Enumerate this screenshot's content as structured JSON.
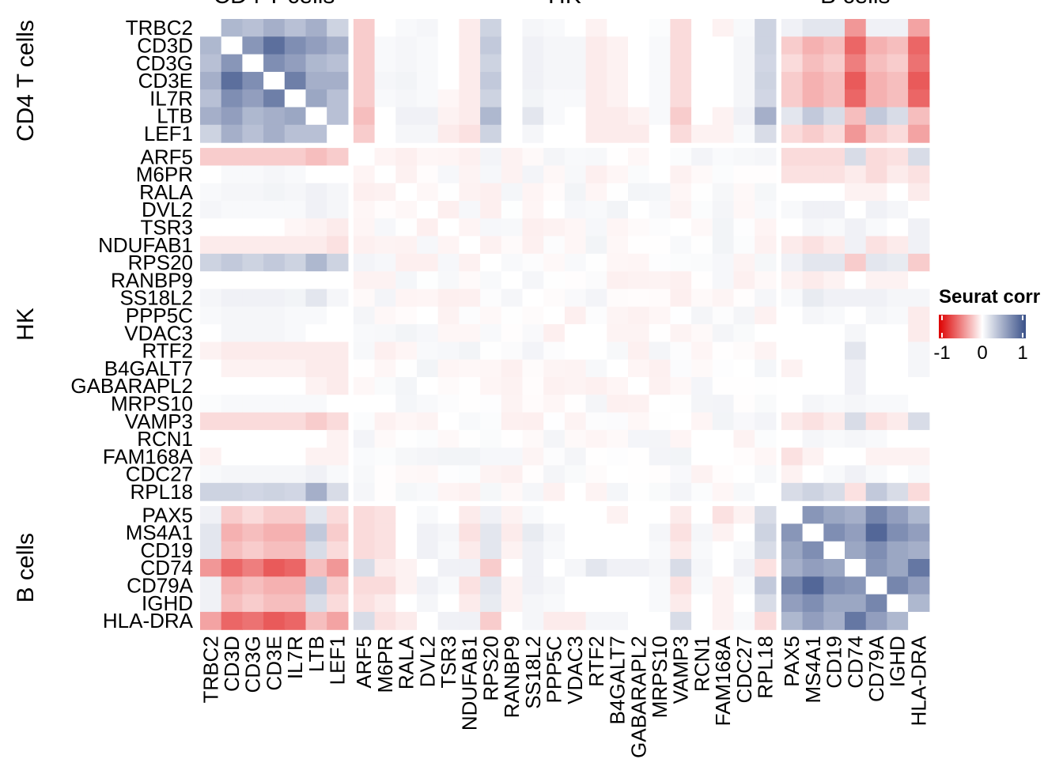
{
  "chart_data": {
    "type": "heatmap",
    "title": "",
    "groups": [
      {
        "name": "CD4 T cells",
        "genes": [
          "TRBC2",
          "CD3D",
          "CD3G",
          "CD3E",
          "IL7R",
          "LTB",
          "LEF1"
        ]
      },
      {
        "name": "HK",
        "genes": [
          "ARF5",
          "M6PR",
          "RALA",
          "DVL2",
          "TSR3",
          "NDUFAB1",
          "RPS20",
          "RANBP9",
          "SS18L2",
          "PPP5C",
          "VDAC3",
          "RTF2",
          "B4GALT7",
          "GABARAPL2",
          "MRPS10",
          "VAMP3",
          "RCN1",
          "FAM168A",
          "CDC27",
          "RPL18"
        ]
      },
      {
        "name": "B cells",
        "genes": [
          "PAX5",
          "MS4A1",
          "CD19",
          "CD74",
          "CD79A",
          "IGHD",
          "HLA-DRA"
        ]
      }
    ],
    "within_blocks": {
      "CD4 T cells": [
        [
          null,
          0.35,
          0.3,
          0.4,
          0.3,
          0.4,
          0.2
        ],
        [
          0.35,
          null,
          0.55,
          0.8,
          0.6,
          0.5,
          0.4
        ],
        [
          0.3,
          0.55,
          null,
          0.6,
          0.5,
          0.35,
          0.3
        ],
        [
          0.4,
          0.8,
          0.6,
          null,
          0.7,
          0.4,
          0.4
        ],
        [
          0.3,
          0.6,
          0.5,
          0.7,
          null,
          0.45,
          0.3
        ],
        [
          0.4,
          0.5,
          0.35,
          0.4,
          0.45,
          null,
          0.3
        ],
        [
          0.2,
          0.4,
          0.3,
          0.4,
          0.3,
          0.3,
          null
        ]
      ],
      "B cells": [
        [
          null,
          0.55,
          0.45,
          0.4,
          0.65,
          0.5,
          0.35
        ],
        [
          0.55,
          null,
          0.6,
          0.5,
          0.85,
          0.6,
          0.5
        ],
        [
          0.45,
          0.6,
          null,
          0.45,
          0.6,
          0.45,
          0.4
        ],
        [
          0.4,
          0.5,
          0.45,
          null,
          0.55,
          0.45,
          0.75
        ],
        [
          0.65,
          0.85,
          0.6,
          0.55,
          null,
          0.65,
          0.5
        ],
        [
          0.5,
          0.6,
          0.45,
          0.45,
          0.65,
          null,
          0.35
        ],
        [
          0.35,
          0.5,
          0.4,
          0.75,
          0.5,
          0.35,
          null
        ]
      ]
    },
    "cross_T_B": [
      [
        0.05,
        0.1,
        0.1,
        -0.35,
        0.05,
        0.05,
        -0.3
      ],
      [
        -0.15,
        -0.25,
        -0.2,
        -0.55,
        -0.25,
        -0.2,
        -0.55
      ],
      [
        -0.1,
        -0.2,
        -0.15,
        -0.45,
        -0.2,
        -0.15,
        -0.5
      ],
      [
        -0.15,
        -0.25,
        -0.2,
        -0.6,
        -0.25,
        -0.2,
        -0.6
      ],
      [
        -0.15,
        -0.25,
        -0.2,
        -0.55,
        -0.25,
        -0.2,
        -0.55
      ],
      [
        0.1,
        0.25,
        0.15,
        -0.2,
        0.25,
        0.15,
        -0.2
      ],
      [
        -0.1,
        -0.15,
        -0.1,
        -0.35,
        -0.15,
        -0.1,
        -0.3
      ]
    ],
    "T_vs_HK": [
      [
        -0.15,
        0.0,
        0.02,
        0.03,
        0.0,
        -0.05,
        0.2,
        0.0,
        0.03,
        0.02,
        0.0,
        -0.03,
        0.0,
        0.0,
        0.01,
        -0.1,
        0.0,
        -0.03,
        0.02,
        0.2
      ],
      [
        -0.15,
        0.02,
        0.03,
        0.02,
        0.0,
        -0.05,
        0.25,
        0.0,
        0.05,
        0.03,
        0.03,
        -0.05,
        -0.03,
        0.0,
        0.02,
        -0.1,
        0.0,
        0.0,
        0.03,
        0.2
      ],
      [
        -0.15,
        0.02,
        0.03,
        0.02,
        0.0,
        -0.05,
        0.2,
        0.0,
        0.05,
        0.03,
        0.03,
        -0.05,
        -0.03,
        0.0,
        0.02,
        -0.1,
        0.0,
        0.0,
        0.03,
        0.18
      ],
      [
        -0.15,
        0.03,
        0.04,
        0.02,
        0.0,
        -0.05,
        0.25,
        0.0,
        0.05,
        0.03,
        0.03,
        -0.05,
        -0.03,
        0.0,
        0.02,
        -0.1,
        0.0,
        0.0,
        0.03,
        0.2
      ],
      [
        -0.15,
        0.02,
        0.03,
        0.02,
        -0.02,
        -0.05,
        0.2,
        0.0,
        0.04,
        0.02,
        0.02,
        -0.05,
        -0.03,
        0.0,
        0.02,
        -0.1,
        0.0,
        0.0,
        0.03,
        0.18
      ],
      [
        -0.2,
        0.0,
        0.05,
        0.05,
        -0.03,
        -0.05,
        0.35,
        0.0,
        0.1,
        0.02,
        0.0,
        -0.05,
        -0.05,
        -0.03,
        0.02,
        -0.15,
        0.0,
        -0.03,
        0.05,
        0.4
      ],
      [
        -0.15,
        0.0,
        0.03,
        0.03,
        -0.05,
        -0.08,
        0.2,
        0.0,
        0.03,
        0.0,
        0.0,
        -0.05,
        -0.05,
        -0.05,
        0.0,
        -0.1,
        -0.03,
        -0.03,
        0.02,
        0.15
      ]
    ],
    "B_vs_HK": [
      [
        -0.1,
        -0.08,
        0.0,
        0.02,
        0.0,
        -0.05,
        0.05,
        -0.03,
        0.02,
        0.0,
        0.0,
        0.0,
        -0.03,
        0.0,
        0.0,
        -0.05,
        0.0,
        -0.08,
        -0.03,
        0.15
      ],
      [
        -0.1,
        -0.08,
        0.0,
        0.05,
        0.03,
        -0.08,
        0.1,
        -0.05,
        0.08,
        0.03,
        0.0,
        0.0,
        0.0,
        0.0,
        0.03,
        -0.08,
        0.03,
        -0.03,
        0.0,
        0.2
      ],
      [
        -0.1,
        -0.08,
        0.0,
        0.05,
        0.02,
        -0.05,
        0.1,
        -0.03,
        0.05,
        0.02,
        0.0,
        0.0,
        0.0,
        0.0,
        0.02,
        -0.05,
        0.02,
        0.0,
        0.02,
        0.15
      ],
      [
        0.15,
        -0.05,
        -0.03,
        0.0,
        0.05,
        0.05,
        -0.15,
        0.0,
        0.05,
        0.0,
        0.03,
        0.1,
        0.05,
        0.05,
        0.03,
        0.15,
        0.03,
        0.0,
        0.05,
        -0.08
      ],
      [
        -0.1,
        -0.1,
        -0.03,
        0.05,
        0.02,
        -0.08,
        0.1,
        -0.03,
        0.05,
        0.03,
        0.0,
        0.0,
        0.0,
        0.0,
        0.02,
        -0.08,
        0.02,
        -0.03,
        0.02,
        0.25
      ],
      [
        -0.08,
        -0.05,
        0.0,
        0.03,
        0.0,
        -0.05,
        0.08,
        -0.03,
        0.03,
        0.02,
        0.0,
        0.0,
        0.0,
        0.0,
        0.02,
        -0.05,
        0.0,
        -0.03,
        0.0,
        0.15
      ],
      [
        0.15,
        -0.08,
        -0.05,
        0.0,
        0.05,
        0.05,
        -0.15,
        0.0,
        0.03,
        -0.05,
        -0.05,
        0.03,
        0.03,
        0.0,
        0.0,
        0.15,
        0.0,
        -0.03,
        0.02,
        -0.1
      ]
    ],
    "HK_within_scale": 0.04,
    "legend": {
      "title": "Seurat corr",
      "ticks": [
        -1,
        0,
        1
      ],
      "low_color": "#dd0000",
      "mid_color": "#ffffff",
      "high_color": "#3a5189"
    },
    "zlim": [
      -1,
      1
    ]
  }
}
